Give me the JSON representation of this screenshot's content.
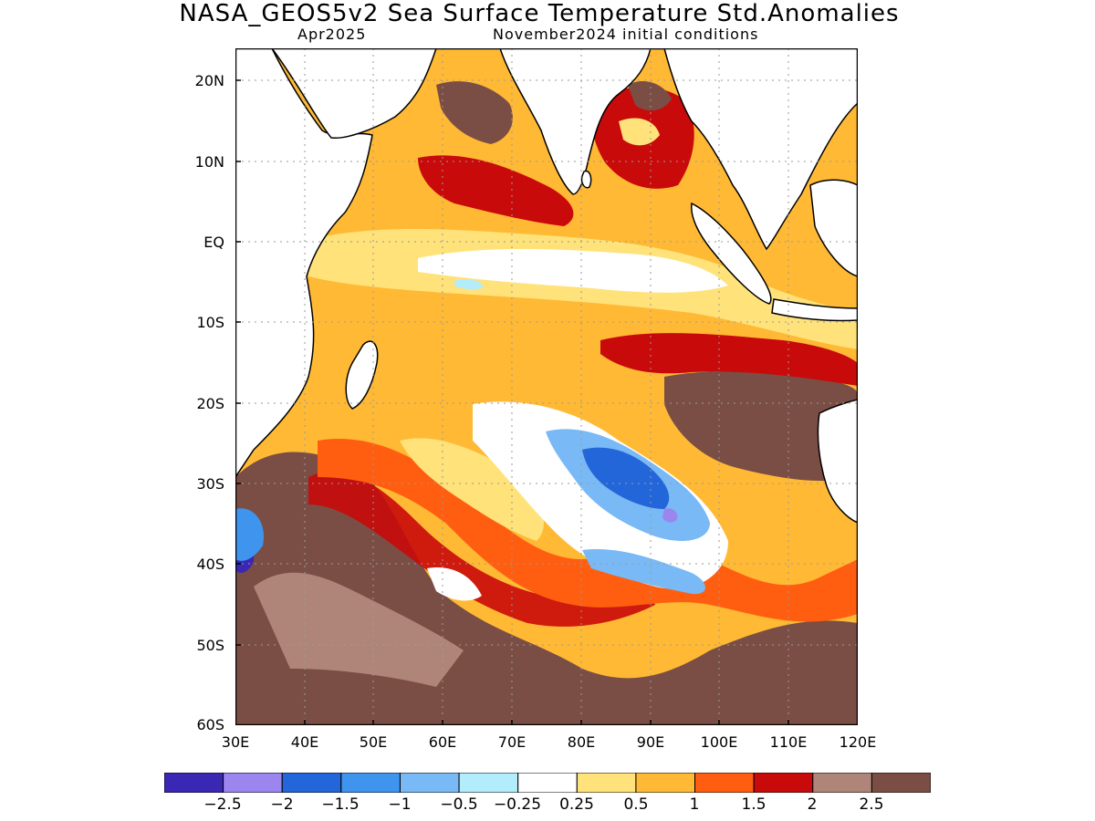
{
  "title": "NASA_GEOS5v2 Sea Surface Temperature Std.Anomalies",
  "subtitle_left": "Apr2025",
  "subtitle_right": "November2024 initial conditions",
  "map": {
    "lon_range": [
      30,
      120
    ],
    "lat_range": [
      -60,
      24
    ],
    "y_ticks": [
      "20N",
      "10N",
      "EQ",
      "10S",
      "20S",
      "30S",
      "40S",
      "50S",
      "60S"
    ],
    "x_ticks": [
      "30E",
      "40E",
      "50E",
      "60E",
      "70E",
      "80E",
      "90E",
      "100E",
      "110E",
      "120E"
    ],
    "grid": true
  },
  "colorbar": {
    "colors": [
      "#3a27b4",
      "#9b85ee",
      "#2266d9",
      "#3f94ee",
      "#79b9f5",
      "#b3ecfa",
      "#ffffff",
      "#ffe27a",
      "#ffb934",
      "#ff5e10",
      "#c90a0a",
      "#b08579",
      "#7a4e45"
    ],
    "labels": [
      "−2.5",
      "−2",
      "−1.5",
      "−1",
      "−0.5",
      "−0.25",
      "0.25",
      "0.5",
      "1",
      "1.5",
      "2",
      "2.5"
    ]
  }
}
